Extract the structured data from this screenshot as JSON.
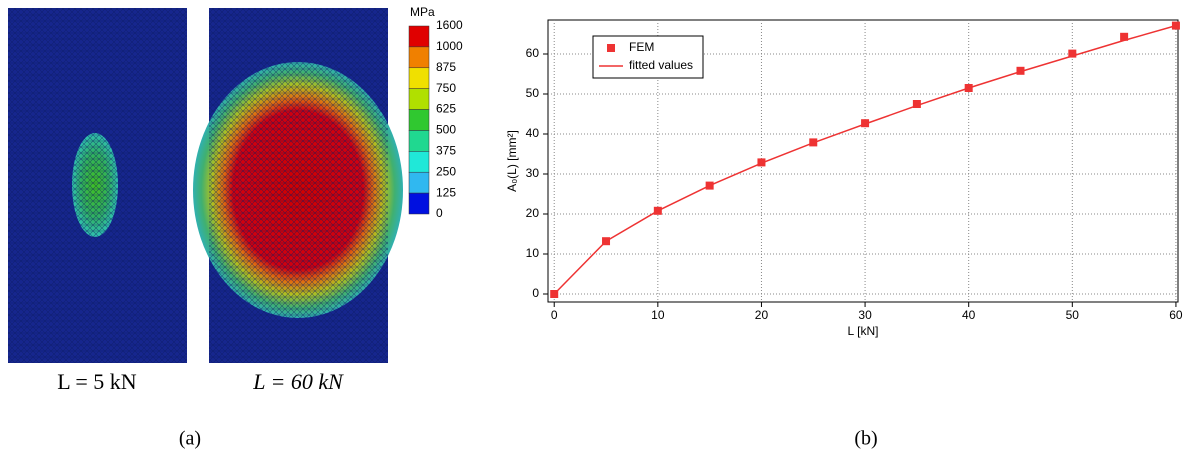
{
  "panel_a": {
    "images": [
      {
        "label": "L = 5 kN"
      },
      {
        "label": "L = 60 kN"
      }
    ],
    "colorbar": {
      "unit": "MPa",
      "levels": [
        1600,
        1000,
        875,
        750,
        625,
        500,
        375,
        250,
        125,
        0
      ],
      "colors": [
        "#e00000",
        "#f08000",
        "#f0e000",
        "#b0e000",
        "#30c830",
        "#20d890",
        "#20e8d8",
        "#30b8f0",
        "#0010e0"
      ]
    },
    "caption": "(a)"
  },
  "chart_data": {
    "type": "line",
    "xlabel": "L [kN]",
    "ylabel": "A₀(L) [mm²]",
    "x": [
      0,
      5,
      10,
      15,
      20,
      25,
      30,
      35,
      40,
      45,
      50,
      55,
      60
    ],
    "series": [
      {
        "name": "FEM",
        "color": "#ee3333",
        "marker": "square",
        "values": [
          0,
          13.2,
          20.8,
          27.1,
          32.9,
          37.9,
          42.7,
          47.5,
          51.5,
          55.8,
          60.1,
          64.3,
          67.1
        ]
      },
      {
        "name": "fitted values",
        "color": "#ee3333",
        "marker": "none",
        "values": [
          0,
          13.2,
          20.8,
          27.1,
          32.7,
          37.8,
          42.5,
          47.1,
          51.5,
          55.6,
          59.5,
          63.4,
          67.1
        ]
      }
    ],
    "xlim": [
      -0.6,
      60.2
    ],
    "ylim": [
      -2,
      68.5
    ],
    "xticks": [
      0,
      10,
      20,
      30,
      40,
      50,
      60
    ],
    "yticks": [
      0,
      10,
      20,
      30,
      40,
      50,
      60
    ],
    "grid": true,
    "legend": "upper left",
    "caption": "(b)"
  }
}
